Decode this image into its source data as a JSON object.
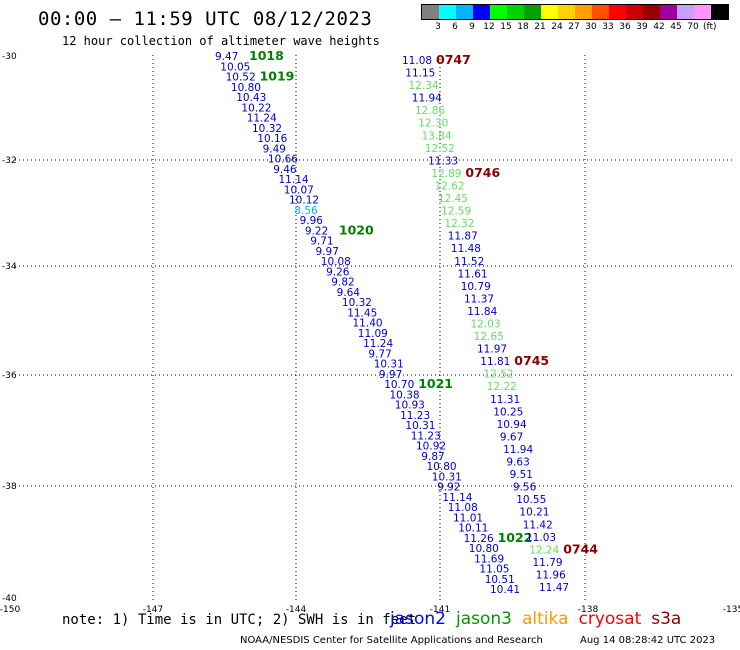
{
  "header": {
    "title": "00:00 – 11:59 UTC 08/12/2023",
    "subtitle": "12 hour collection of altimeter wave heights"
  },
  "legend": {
    "colors": [
      "#808080",
      "#00ffff",
      "#00b4ff",
      "#0000ff",
      "#00ff00",
      "#00d200",
      "#00a000",
      "#ffff00",
      "#ffd200",
      "#ffa000",
      "#ff5000",
      "#ff0000",
      "#c80000",
      "#960000",
      "#a000a0",
      "#c8a0ff",
      "#ff96ff",
      "#000000"
    ],
    "ticks": [
      "3",
      "6",
      "9",
      "12",
      "15",
      "18",
      "21",
      "24",
      "27",
      "30",
      "33",
      "36",
      "39",
      "42",
      "45",
      "70"
    ],
    "unit": "(ft)"
  },
  "axes": {
    "lon_labels": [
      "-150",
      "-147",
      "-144",
      "-141",
      "-138",
      "-135"
    ],
    "lat_labels": [
      "-30",
      "-32",
      "-34",
      "-36",
      "-38",
      "-40"
    ]
  },
  "tracks": {
    "left": {
      "times": [
        {
          "label": "1018",
          "color": "#008000"
        },
        {
          "label": "1019",
          "color": "#008000"
        },
        {
          "label": "1020",
          "color": "#008000"
        },
        {
          "label": "1021",
          "color": "#008000"
        },
        {
          "label": "1022",
          "color": "#008000"
        }
      ],
      "values": [
        {
          "v": "9.47",
          "c": "#0000cc"
        },
        {
          "v": "10.05",
          "c": "#0000cc"
        },
        {
          "v": "10.52",
          "c": "#0000cc"
        },
        {
          "v": "10.80",
          "c": "#0000cc"
        },
        {
          "v": "10.43",
          "c": "#0000cc"
        },
        {
          "v": "10.22",
          "c": "#0000cc"
        },
        {
          "v": "11.24",
          "c": "#0000cc"
        },
        {
          "v": "10.32",
          "c": "#0000cc"
        },
        {
          "v": "10.16",
          "c": "#0000cc"
        },
        {
          "v": "9.49",
          "c": "#0000cc"
        },
        {
          "v": "10.66",
          "c": "#0000cc"
        },
        {
          "v": "9.46",
          "c": "#0000cc"
        },
        {
          "v": "11.14",
          "c": "#0000cc"
        },
        {
          "v": "10.07",
          "c": "#0000cc"
        },
        {
          "v": "10.12",
          "c": "#0000cc"
        },
        {
          "v": "8.56",
          "c": "#00b4ff"
        },
        {
          "v": "9.96",
          "c": "#0000cc"
        },
        {
          "v": "9.22",
          "c": "#0000cc"
        },
        {
          "v": "9.71",
          "c": "#0000cc"
        },
        {
          "v": "9.97",
          "c": "#0000cc"
        },
        {
          "v": "10.08",
          "c": "#0000cc"
        },
        {
          "v": "9.26",
          "c": "#0000cc"
        },
        {
          "v": "9.82",
          "c": "#0000cc"
        },
        {
          "v": "9.64",
          "c": "#0000cc"
        },
        {
          "v": "10.32",
          "c": "#0000cc"
        },
        {
          "v": "11.45",
          "c": "#0000cc"
        },
        {
          "v": "11.40",
          "c": "#0000cc"
        },
        {
          "v": "11.09",
          "c": "#0000cc"
        },
        {
          "v": "11.24",
          "c": "#0000cc"
        },
        {
          "v": "9.77",
          "c": "#0000cc"
        },
        {
          "v": "10.31",
          "c": "#0000cc"
        },
        {
          "v": "9.97",
          "c": "#0000cc"
        },
        {
          "v": "10.70",
          "c": "#0000cc"
        },
        {
          "v": "10.38",
          "c": "#0000cc"
        },
        {
          "v": "10.93",
          "c": "#0000cc"
        },
        {
          "v": "11.23",
          "c": "#0000cc"
        },
        {
          "v": "10.31",
          "c": "#0000cc"
        },
        {
          "v": "11.23",
          "c": "#0000cc"
        },
        {
          "v": "10.92",
          "c": "#0000cc"
        },
        {
          "v": "9.87",
          "c": "#0000cc"
        },
        {
          "v": "10.80",
          "c": "#0000cc"
        },
        {
          "v": "10.31",
          "c": "#0000cc"
        },
        {
          "v": "9.92",
          "c": "#0000cc"
        },
        {
          "v": "11.14",
          "c": "#0000cc"
        },
        {
          "v": "11.08",
          "c": "#0000cc"
        },
        {
          "v": "11.01",
          "c": "#0000cc"
        },
        {
          "v": "10.11",
          "c": "#0000cc"
        },
        {
          "v": "11.26",
          "c": "#0000cc"
        },
        {
          "v": "10.80",
          "c": "#0000cc"
        },
        {
          "v": "11.69",
          "c": "#0000cc"
        },
        {
          "v": "11.05",
          "c": "#0000cc"
        },
        {
          "v": "10.51",
          "c": "#0000cc"
        },
        {
          "v": "10.41",
          "c": "#0000cc"
        }
      ]
    },
    "right": {
      "times": [
        {
          "label": "0747",
          "color": "#8b0000"
        },
        {
          "label": "0746",
          "color": "#8b0000"
        },
        {
          "label": "0745",
          "color": "#8b0000"
        },
        {
          "label": "0744",
          "color": "#8b0000"
        }
      ],
      "values": [
        {
          "v": "11.08",
          "c": "#0000cc"
        },
        {
          "v": "11.15",
          "c": "#0000cc"
        },
        {
          "v": "12.34",
          "c": "#66dd66"
        },
        {
          "v": "11.94",
          "c": "#0000cc"
        },
        {
          "v": "12.86",
          "c": "#66dd66"
        },
        {
          "v": "12.30",
          "c": "#66dd66"
        },
        {
          "v": "13.84",
          "c": "#66dd66"
        },
        {
          "v": "12.52",
          "c": "#66dd66"
        },
        {
          "v": "11.33",
          "c": "#0000cc"
        },
        {
          "v": "12.89",
          "c": "#66dd66"
        },
        {
          "v": "12.62",
          "c": "#66dd66"
        },
        {
          "v": "12.45",
          "c": "#66dd66"
        },
        {
          "v": "12.59",
          "c": "#66dd66"
        },
        {
          "v": "12.32",
          "c": "#66dd66"
        },
        {
          "v": "11.87",
          "c": "#0000cc"
        },
        {
          "v": "11.48",
          "c": "#0000cc"
        },
        {
          "v": "11.52",
          "c": "#0000cc"
        },
        {
          "v": "11.61",
          "c": "#0000cc"
        },
        {
          "v": "10.79",
          "c": "#0000cc"
        },
        {
          "v": "11.37",
          "c": "#0000cc"
        },
        {
          "v": "11.84",
          "c": "#0000cc"
        },
        {
          "v": "12.03",
          "c": "#66dd66"
        },
        {
          "v": "12.65",
          "c": "#66dd66"
        },
        {
          "v": "11.97",
          "c": "#0000cc"
        },
        {
          "v": "11.81",
          "c": "#0000cc"
        },
        {
          "v": "12.52",
          "c": "#66dd66"
        },
        {
          "v": "12.22",
          "c": "#66dd66"
        },
        {
          "v": "11.31",
          "c": "#0000cc"
        },
        {
          "v": "10.25",
          "c": "#0000cc"
        },
        {
          "v": "10.94",
          "c": "#0000cc"
        },
        {
          "v": "9.67",
          "c": "#0000cc"
        },
        {
          "v": "11.94",
          "c": "#0000cc"
        },
        {
          "v": "9.63",
          "c": "#0000cc"
        },
        {
          "v": "9.51",
          "c": "#0000cc"
        },
        {
          "v": "9.56",
          "c": "#0000cc"
        },
        {
          "v": "10.55",
          "c": "#0000cc"
        },
        {
          "v": "10.21",
          "c": "#0000cc"
        },
        {
          "v": "11.42",
          "c": "#0000cc"
        },
        {
          "v": "11.03",
          "c": "#0000cc"
        },
        {
          "v": "12.24",
          "c": "#66dd66"
        },
        {
          "v": "11.79",
          "c": "#0000cc"
        },
        {
          "v": "11.96",
          "c": "#0000cc"
        },
        {
          "v": "11.47",
          "c": "#0000cc"
        }
      ]
    }
  },
  "footer": {
    "note": "note: 1) Time is in UTC; 2) SWH is in feet",
    "satellites": [
      {
        "name": "jason2",
        "color": "#0000ff"
      },
      {
        "name": "jason3",
        "color": "#009900"
      },
      {
        "name": "altika",
        "color": "#ff9900"
      },
      {
        "name": "cryosat",
        "color": "#ff0000"
      },
      {
        "name": "s3a",
        "color": "#8b0000"
      }
    ],
    "credit": "NOAA/NESDIS Center for Satellite Applications and Research",
    "timestamp": "Aug 14 08:28:42 UTC 2023"
  }
}
